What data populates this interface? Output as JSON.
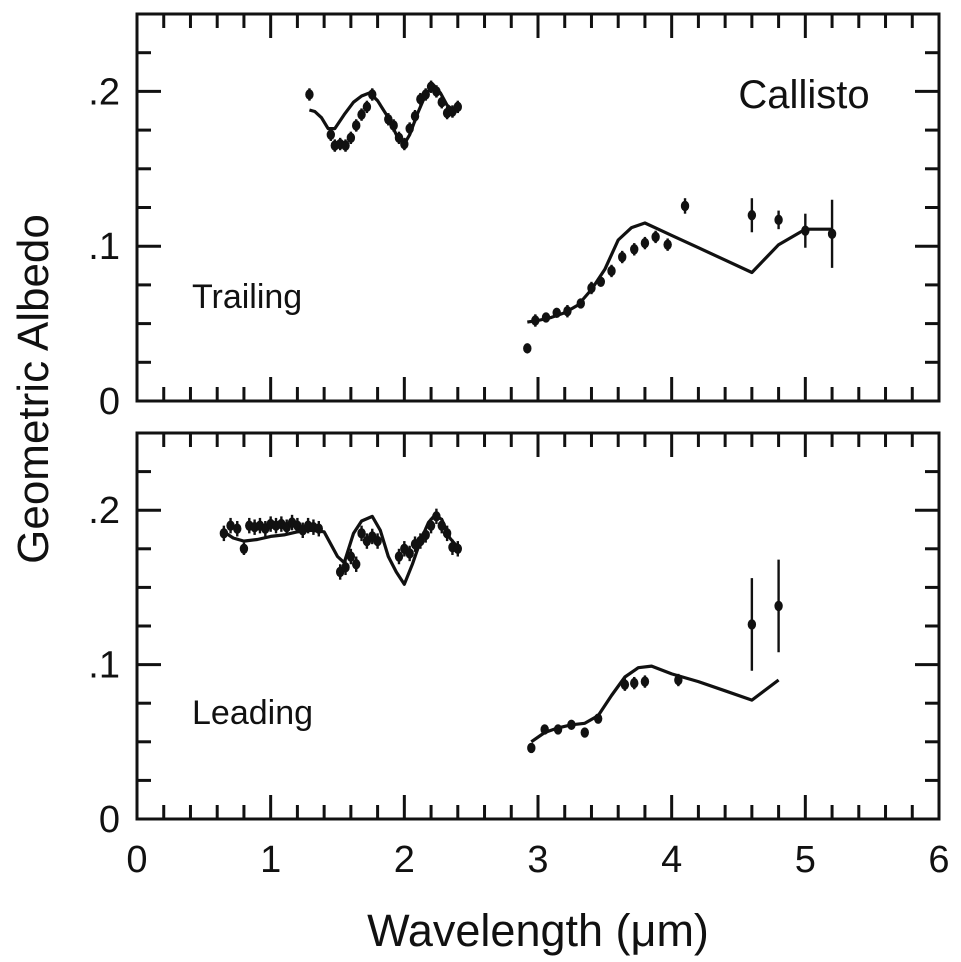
{
  "figure": {
    "xlabel": "Wavelength (μm)",
    "ylabel": "Geometric Albedo",
    "title": "Callisto"
  },
  "chart_data": [
    {
      "type": "scatter",
      "panel": "top",
      "title": "Callisto",
      "annotation": "Trailing",
      "xlabel": "",
      "ylabel": "Geometric Albedo",
      "xlim": [
        0,
        6
      ],
      "ylim": [
        0,
        0.25
      ],
      "x_ticks": [
        0,
        1,
        2,
        3,
        4,
        5,
        6
      ],
      "y_ticks": [
        0,
        0.1,
        0.2
      ],
      "y_tick_labels": [
        "0",
        ".1",
        ".2"
      ],
      "series": [
        {
          "kind": "points",
          "x": [
            1.29,
            1.45,
            1.48,
            1.52,
            1.56,
            1.6,
            1.64,
            1.68,
            1.72,
            1.76,
            1.88,
            1.92,
            1.96,
            2.0,
            2.04,
            2.08,
            2.12,
            2.16,
            2.2,
            2.24,
            2.28,
            2.32,
            2.36,
            2.4
          ],
          "y": [
            0.198,
            0.172,
            0.165,
            0.166,
            0.165,
            0.17,
            0.178,
            0.185,
            0.19,
            0.198,
            0.182,
            0.178,
            0.17,
            0.166,
            0.176,
            0.184,
            0.195,
            0.198,
            0.203,
            0.2,
            0.193,
            0.186,
            0.187,
            0.19
          ],
          "err": [
            0.004,
            0.004,
            0.004,
            0.004,
            0.004,
            0.004,
            0.004,
            0.004,
            0.004,
            0.004,
            0.004,
            0.004,
            0.004,
            0.004,
            0.004,
            0.004,
            0.004,
            0.004,
            0.004,
            0.004,
            0.004,
            0.004,
            0.004,
            0.004
          ]
        },
        {
          "kind": "points",
          "x": [
            2.92,
            2.98,
            3.06,
            3.14,
            3.22,
            3.32,
            3.4,
            3.47,
            3.55,
            3.63,
            3.72,
            3.8,
            3.88,
            3.97,
            4.1,
            4.6,
            4.8,
            5.0,
            5.2
          ],
          "y": [
            0.034,
            0.052,
            0.054,
            0.057,
            0.058,
            0.063,
            0.073,
            0.077,
            0.084,
            0.093,
            0.098,
            0.102,
            0.106,
            0.101,
            0.126,
            0.12,
            0.117,
            0.11,
            0.108
          ],
          "err": [
            0.003,
            0.004,
            0.003,
            0.003,
            0.004,
            0.003,
            0.004,
            0.003,
            0.004,
            0.004,
            0.004,
            0.004,
            0.004,
            0.004,
            0.005,
            0.011,
            0.006,
            0.011,
            0.022
          ]
        },
        {
          "kind": "line",
          "x": [
            1.29,
            1.33,
            1.38,
            1.43,
            1.48,
            1.55,
            1.62,
            1.68,
            1.74,
            1.8,
            1.88,
            1.94,
            2.0,
            2.04,
            2.1,
            2.16,
            2.22,
            2.27,
            2.32,
            2.38
          ],
          "y": [
            0.188,
            0.187,
            0.183,
            0.176,
            0.176,
            0.185,
            0.193,
            0.197,
            0.199,
            0.194,
            0.183,
            0.172,
            0.166,
            0.172,
            0.186,
            0.198,
            0.204,
            0.199,
            0.191,
            0.187
          ]
        },
        {
          "kind": "line",
          "x": [
            2.92,
            3.0,
            3.1,
            3.2,
            3.3,
            3.4,
            3.5,
            3.6,
            3.7,
            3.8,
            3.9,
            4.0,
            4.2,
            4.4,
            4.6,
            4.8,
            5.0,
            5.2
          ],
          "y": [
            0.051,
            0.052,
            0.054,
            0.057,
            0.062,
            0.072,
            0.085,
            0.104,
            0.112,
            0.115,
            0.111,
            0.107,
            0.099,
            0.091,
            0.083,
            0.101,
            0.111,
            0.111
          ]
        }
      ]
    },
    {
      "type": "scatter",
      "panel": "bottom",
      "title": "",
      "annotation": "Leading",
      "xlabel": "Wavelength (μm)",
      "ylabel": "Geometric Albedo",
      "xlim": [
        0,
        6
      ],
      "ylim": [
        0,
        0.25
      ],
      "x_ticks": [
        0,
        1,
        2,
        3,
        4,
        5,
        6
      ],
      "y_ticks": [
        0,
        0.1,
        0.2
      ],
      "x_tick_labels": [
        "0",
        "1",
        "2",
        "3",
        "4",
        "5",
        "6"
      ],
      "y_tick_labels": [
        "0",
        ".1",
        ".2"
      ],
      "series": [
        {
          "kind": "points",
          "x": [
            0.65,
            0.7,
            0.75,
            0.8,
            0.84,
            0.88,
            0.92,
            0.96,
            1.0,
            1.04,
            1.08,
            1.12,
            1.16,
            1.2,
            1.24,
            1.28,
            1.32,
            1.36,
            1.52,
            1.56,
            1.6,
            1.64,
            1.68,
            1.72,
            1.76,
            1.8,
            1.96,
            2.0,
            2.04,
            2.08,
            2.12,
            2.16,
            2.2,
            2.24,
            2.28,
            2.32,
            2.36,
            2.4
          ],
          "y": [
            0.185,
            0.19,
            0.188,
            0.175,
            0.19,
            0.189,
            0.19,
            0.188,
            0.191,
            0.19,
            0.191,
            0.189,
            0.192,
            0.19,
            0.187,
            0.19,
            0.189,
            0.188,
            0.16,
            0.163,
            0.17,
            0.165,
            0.185,
            0.18,
            0.183,
            0.18,
            0.17,
            0.175,
            0.172,
            0.178,
            0.18,
            0.184,
            0.19,
            0.196,
            0.19,
            0.185,
            0.176,
            0.175
          ],
          "err": [
            0.005,
            0.005,
            0.005,
            0.004,
            0.005,
            0.005,
            0.005,
            0.005,
            0.005,
            0.005,
            0.005,
            0.005,
            0.005,
            0.005,
            0.005,
            0.005,
            0.005,
            0.005,
            0.005,
            0.005,
            0.005,
            0.005,
            0.005,
            0.005,
            0.005,
            0.005,
            0.005,
            0.005,
            0.005,
            0.005,
            0.005,
            0.005,
            0.005,
            0.005,
            0.005,
            0.005,
            0.005,
            0.005
          ]
        },
        {
          "kind": "points",
          "x": [
            2.95,
            3.05,
            3.15,
            3.25,
            3.35,
            3.45,
            3.65,
            3.72,
            3.8,
            4.05,
            4.6,
            4.8
          ],
          "y": [
            0.046,
            0.058,
            0.058,
            0.061,
            0.056,
            0.065,
            0.087,
            0.088,
            0.089,
            0.09,
            0.126,
            0.138
          ],
          "err": [
            0.003,
            0.003,
            0.003,
            0.003,
            0.003,
            0.003,
            0.004,
            0.004,
            0.004,
            0.004,
            0.03,
            0.03
          ]
        },
        {
          "kind": "line",
          "x": [
            0.65,
            0.72,
            0.8,
            0.9,
            1.0,
            1.1,
            1.2,
            1.3,
            1.4,
            1.5,
            1.55,
            1.62,
            1.68,
            1.76,
            1.82,
            1.88,
            1.94,
            2.0,
            2.06,
            2.12,
            2.18,
            2.23,
            2.28,
            2.34,
            2.4
          ],
          "y": [
            0.186,
            0.182,
            0.18,
            0.181,
            0.183,
            0.184,
            0.186,
            0.187,
            0.186,
            0.17,
            0.166,
            0.185,
            0.193,
            0.196,
            0.187,
            0.17,
            0.16,
            0.152,
            0.165,
            0.18,
            0.192,
            0.197,
            0.194,
            0.182,
            0.176
          ]
        },
        {
          "kind": "line",
          "x": [
            2.95,
            3.05,
            3.15,
            3.25,
            3.35,
            3.45,
            3.55,
            3.65,
            3.75,
            3.85,
            4.0,
            4.2,
            4.4,
            4.6,
            4.8
          ],
          "y": [
            0.05,
            0.056,
            0.059,
            0.061,
            0.062,
            0.067,
            0.08,
            0.092,
            0.098,
            0.099,
            0.094,
            0.089,
            0.083,
            0.077,
            0.09
          ]
        }
      ]
    }
  ]
}
